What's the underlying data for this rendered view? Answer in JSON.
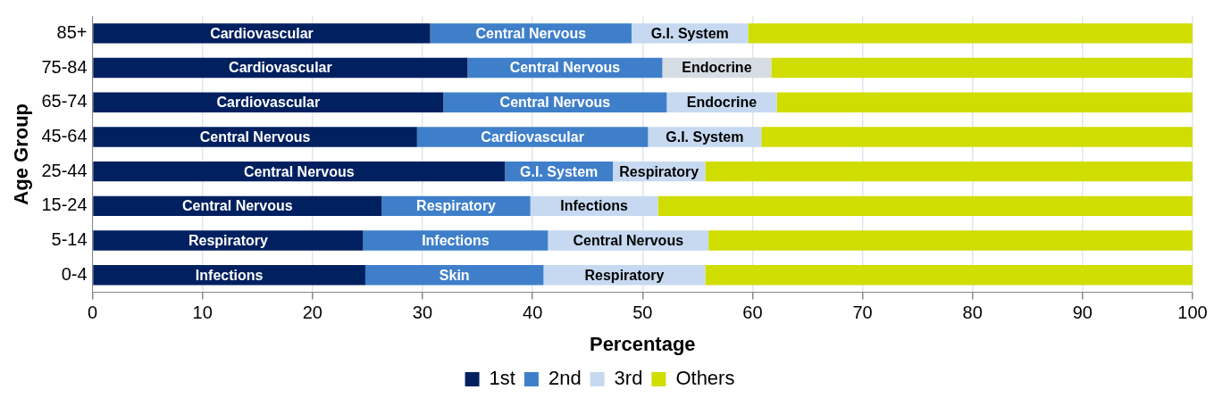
{
  "chart_data": {
    "type": "bar",
    "orientation": "horizontal",
    "stacked": true,
    "xlabel": "Percentage",
    "ylabel": "Age Group",
    "categories": [
      "85+",
      "75-84",
      "65-74",
      "45-64",
      "25-44",
      "15-24",
      "5-14",
      "0-4"
    ],
    "xlim": [
      0,
      100
    ],
    "xticks": [
      0,
      10,
      20,
      30,
      40,
      50,
      60,
      70,
      80,
      90,
      100
    ],
    "grid": "x",
    "legend": "bottom",
    "series": [
      {
        "name": "1st",
        "color": "#002060",
        "values": [
          30.7,
          34.1,
          31.9,
          29.5,
          37.5,
          26.3,
          24.6,
          24.8
        ],
        "value_labels": [
          "Cardiovascular",
          "Cardiovascular",
          "Cardiovascular",
          "Central Nervous",
          "Central Nervous",
          "Central Nervous",
          "Respiratory",
          "Infections"
        ]
      },
      {
        "name": "2nd",
        "color": "#3f7fca",
        "values": [
          18.3,
          17.7,
          20.3,
          21.0,
          9.8,
          13.5,
          16.8,
          16.2
        ],
        "value_labels": [
          "Central Nervous",
          "Central Nervous",
          "Central Nervous",
          "Cardiovascular",
          "G.I. System",
          "Respiratory",
          "Infections",
          "Skin"
        ]
      },
      {
        "name": "3rd",
        "color": "#c6d9f0",
        "colors": [
          "#c6d9f0",
          "#d6dce4",
          "#c6d9f0",
          "#c6d9f0",
          "#c6d9f0",
          "#c6d9f0",
          "#c6d9f0",
          "#c6d9f0"
        ],
        "values": [
          10.6,
          9.9,
          10.0,
          10.3,
          8.4,
          11.6,
          14.6,
          14.7
        ],
        "value_labels": [
          "G.I. System",
          "Endocrine",
          "Endocrine",
          "G.I. System",
          "Respiratory",
          "Infections",
          "Central Nervous",
          "Respiratory"
        ]
      },
      {
        "name": "Others",
        "color": "#d0dd00",
        "values": [
          40.4,
          38.3,
          37.8,
          39.2,
          44.3,
          48.6,
          44.0,
          44.3
        ]
      }
    ]
  }
}
